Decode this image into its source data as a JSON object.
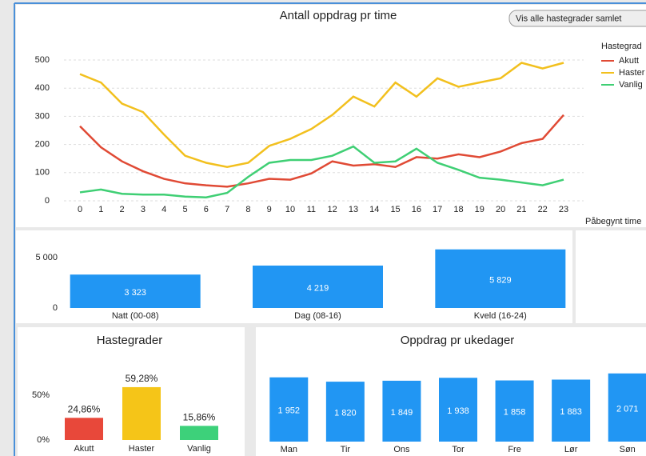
{
  "button": "Vis alle hastegrader samlet",
  "chart_data": [
    {
      "type": "line",
      "title": "Antall oppdrag pr time",
      "x_label": "Påbegynt time",
      "legend_title": "Hastegrad",
      "legend": "right",
      "x": [
        0,
        1,
        2,
        3,
        4,
        5,
        6,
        7,
        8,
        9,
        10,
        11,
        12,
        13,
        14,
        15,
        16,
        17,
        18,
        19,
        20,
        21,
        22,
        23
      ],
      "xlim": [
        0,
        23
      ],
      "xticks": [
        0,
        1,
        2,
        3,
        4,
        5,
        6,
        7,
        8,
        9,
        10,
        11,
        12,
        13,
        14,
        15,
        16,
        17,
        18,
        19,
        20,
        21,
        22,
        23
      ],
      "ylim": [
        0,
        500
      ],
      "yticks": [
        0,
        100,
        200,
        300,
        400,
        500
      ],
      "grid": true,
      "series": [
        {
          "name": "Akutt",
          "color": "#e04a35",
          "values": [
            265,
            190,
            140,
            105,
            78,
            62,
            55,
            50,
            62,
            78,
            75,
            97,
            140,
            125,
            130,
            120,
            155,
            150,
            165,
            155,
            175,
            205,
            220,
            305
          ]
        },
        {
          "name": "Haster",
          "color": "#f2c01e",
          "values": [
            450,
            420,
            345,
            315,
            235,
            160,
            135,
            120,
            135,
            195,
            220,
            255,
            305,
            370,
            335,
            420,
            370,
            435,
            405,
            420,
            435,
            490,
            470,
            490
          ]
        },
        {
          "name": "Vanlig",
          "color": "#3fcf74",
          "values": [
            30,
            40,
            25,
            22,
            22,
            15,
            12,
            28,
            85,
            135,
            145,
            145,
            160,
            193,
            135,
            140,
            185,
            135,
            110,
            82,
            75,
            65,
            55,
            75
          ]
        }
      ]
    },
    {
      "type": "bar",
      "categories": [
        "Natt (00-08)",
        "Dag (08-16)",
        "Kveld (16-24)"
      ],
      "values": [
        3323,
        4219,
        5829
      ],
      "value_labels": [
        "3 323",
        "4 219",
        "5 829"
      ],
      "color": "#2196f3",
      "ylim": [
        0,
        7000
      ],
      "yticks": [
        0,
        {
          "value": 5000,
          "label": "5 000"
        }
      ]
    },
    {
      "type": "bar",
      "title": "Hastegrader",
      "categories": [
        "Akutt",
        "Haster",
        "Vanlig"
      ],
      "values": [
        24.86,
        59.28,
        15.86
      ],
      "value_labels": [
        "24,86%",
        "59,28%",
        "15,86%"
      ],
      "colors": [
        "#e8483a",
        "#f5c518",
        "#3dd17a"
      ],
      "ylim": [
        0,
        70
      ],
      "yticks": [
        {
          "value": 0,
          "label": "0%"
        },
        {
          "value": 50,
          "label": "50%"
        }
      ]
    },
    {
      "type": "bar",
      "title": "Oppdrag pr ukedager",
      "categories": [
        "Man",
        "Tir",
        "Ons",
        "Tor",
        "Fre",
        "Lør",
        "Søn"
      ],
      "values": [
        1952,
        1820,
        1849,
        1938,
        1858,
        1883,
        2071
      ],
      "value_labels": [
        "1 952",
        "1 820",
        "1 849",
        "1 938",
        "1 858",
        "1 883",
        "2 071"
      ],
      "color": "#2196f3",
      "ylim": [
        0,
        2600
      ]
    }
  ]
}
